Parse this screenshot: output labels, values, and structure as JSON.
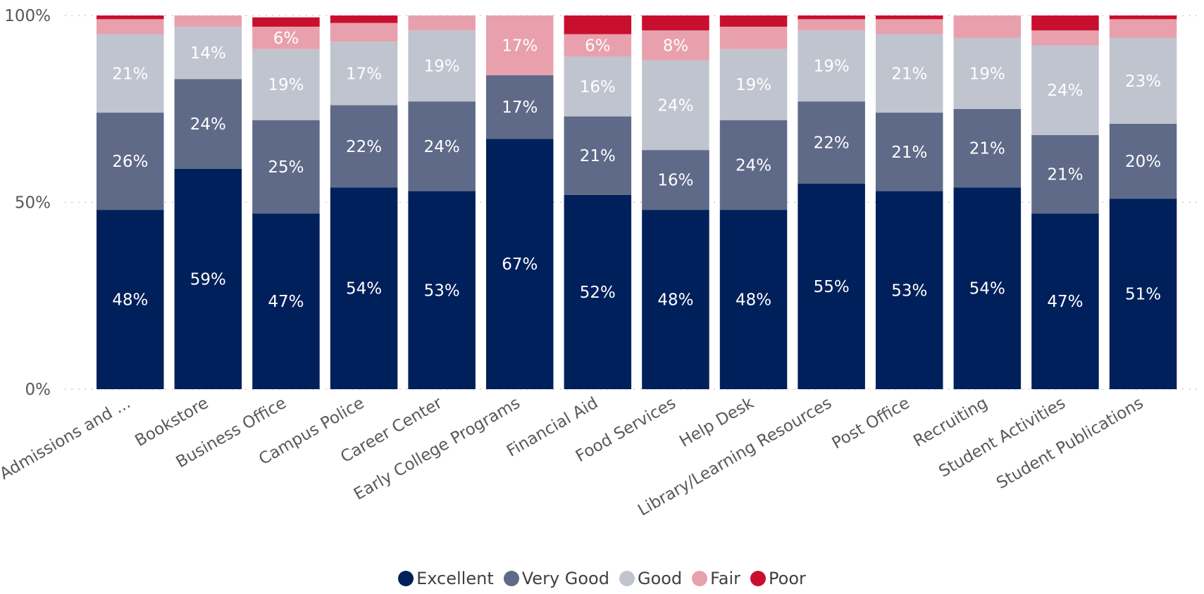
{
  "chart_data": {
    "type": "bar",
    "stacked": true,
    "orientation": "vertical",
    "title": "",
    "xlabel": "",
    "ylabel": "",
    "ylim": [
      0,
      100
    ],
    "yticks": [
      "0%",
      "50%",
      "100%"
    ],
    "ytick_values": [
      0,
      50,
      100
    ],
    "grid": true,
    "legend_position": "bottom",
    "categories": [
      "Admissions and ...",
      "Bookstore",
      "Business Office",
      "Campus Police",
      "Career Center",
      "Early College Programs",
      "Financial Aid",
      "Food Services",
      "Help Desk",
      "Library/Learning Resources",
      "Post Office",
      "Recruiting",
      "Student Activities",
      "Student Publications"
    ],
    "series": [
      {
        "name": "Excellent",
        "color": "#00205B",
        "values": [
          48,
          59,
          47,
          54,
          53,
          67,
          52,
          48,
          48,
          55,
          53,
          54,
          47,
          51
        ],
        "labels": [
          "48%",
          "59%",
          "47%",
          "54%",
          "53%",
          "67%",
          "52%",
          "48%",
          "48%",
          "55%",
          "53%",
          "54%",
          "47%",
          "51%"
        ]
      },
      {
        "name": "Very Good",
        "color": "#5E6A88",
        "values": [
          26,
          24,
          25,
          22,
          24,
          17,
          21,
          16,
          24,
          22,
          21,
          21,
          21,
          20
        ],
        "labels": [
          "26%",
          "24%",
          "25%",
          "22%",
          "24%",
          "17%",
          "21%",
          "16%",
          "24%",
          "22%",
          "21%",
          "21%",
          "21%",
          "20%"
        ]
      },
      {
        "name": "Good",
        "color": "#C0C4CF",
        "values": [
          21,
          14,
          19,
          17,
          19,
          0,
          16,
          24,
          19,
          19,
          21,
          19,
          24,
          23
        ],
        "labels": [
          "21%",
          "14%",
          "19%",
          "17%",
          "19%",
          "",
          "16%",
          "24%",
          "19%",
          "19%",
          "21%",
          "19%",
          "24%",
          "23%"
        ]
      },
      {
        "name": "Fair",
        "color": "#E8A0AD",
        "values": [
          4,
          3,
          6,
          5,
          4,
          17,
          6,
          8,
          6,
          3,
          4,
          6,
          4,
          5
        ],
        "labels": [
          "",
          "",
          "6%",
          "",
          "",
          "17%",
          "6%",
          "8%",
          "",
          "",
          "",
          "",
          "",
          ""
        ]
      },
      {
        "name": "Poor",
        "color": "#C8102E",
        "values": [
          1,
          0.3,
          2.5,
          2,
          1,
          0,
          5.5,
          4,
          3,
          1,
          1,
          0.5,
          4,
          1.5
        ],
        "labels": [
          "",
          "",
          "",
          "",
          "",
          "",
          "",
          "",
          "",
          "",
          "",
          "",
          "",
          ""
        ]
      }
    ],
    "axis_text_color": "#595959",
    "gridline_color": "#B0B0B0"
  }
}
